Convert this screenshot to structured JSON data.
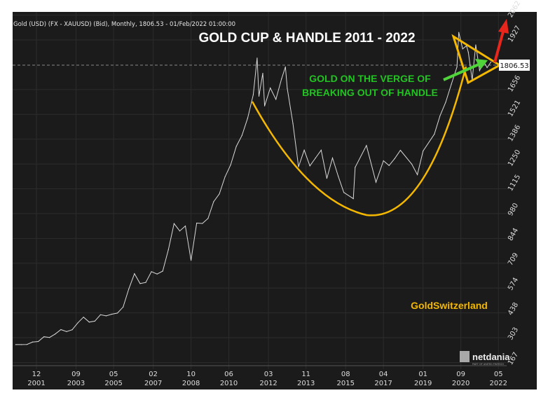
{
  "chart_data": {
    "type": "line",
    "header": "Gold (USD) (FX - XAUUSD) (Bid), Monthly, 1806.53 - 01/Feb/2022 01:00:00",
    "title": "GOLD CUP & HANDLE 2011 - 2022",
    "annotation": [
      "GOLD ON THE VERGE OF",
      "BREAKING OUT OF HANDLE"
    ],
    "brand": "GoldSwitzerland",
    "logo": "netdania",
    "logo_sub": "PART OF UNITED FINTECH",
    "last_value_label": "1806.53",
    "y_ticks": [
      "2062",
      "1927",
      "1656",
      "1521",
      "1386",
      "1250",
      "1115",
      "980",
      "844",
      "709",
      "574",
      "438",
      "303",
      "167"
    ],
    "y_tick_values": [
      2062,
      1927,
      1656,
      1521,
      1386,
      1250,
      1115,
      980,
      844,
      709,
      574,
      438,
      303,
      167
    ],
    "x_ticks": [
      [
        "12",
        "2001"
      ],
      [
        "09",
        "2003"
      ],
      [
        "05",
        "2005"
      ],
      [
        "02",
        "2007"
      ],
      [
        "10",
        "2008"
      ],
      [
        "06",
        "2010"
      ],
      [
        "03",
        "2012"
      ],
      [
        "11",
        "2013"
      ],
      [
        "08",
        "2015"
      ],
      [
        "04",
        "2017"
      ],
      [
        "01",
        "2019"
      ],
      [
        "09",
        "2020"
      ],
      [
        "05",
        "2022"
      ]
    ],
    "x_tick_years": [
      2001.92,
      2003.67,
      2005.33,
      2007.08,
      2008.75,
      2010.42,
      2012.17,
      2013.83,
      2015.58,
      2017.25,
      2019.0,
      2020.67,
      2022.33
    ],
    "colors": {
      "background": "#1b1b1b",
      "line": "#d9d9d9",
      "cup": "#f5b800",
      "title": "#ffffff",
      "annotation": "#22c322",
      "breakout_arrow": "#e8261c",
      "trend_arrow": "#4fd43a",
      "brand": "#f5b800"
    },
    "series": [
      {
        "x": [
          2001.0,
          2001.25,
          2001.5,
          2001.75,
          2002.0,
          2002.25,
          2002.5,
          2002.75,
          2003.0,
          2003.25,
          2003.5,
          2003.75,
          2004.0,
          2004.25,
          2004.5,
          2004.75,
          2005.0,
          2005.25,
          2005.5,
          2005.75,
          2006.0,
          2006.25,
          2006.5,
          2006.75,
          2007.0,
          2007.25,
          2007.5,
          2007.75,
          2008.0,
          2008.25,
          2008.5,
          2008.75,
          2009.0,
          2009.25,
          2009.5,
          2009.75,
          2010.0,
          2010.25,
          2010.5,
          2010.75,
          2011.0,
          2011.25,
          2011.5,
          2011.67,
          2011.75,
          2011.92,
          2012.0,
          2012.25,
          2012.5,
          2012.75,
          2012.92,
          2013.0,
          2013.25,
          2013.5,
          2013.75,
          2014.0,
          2014.25,
          2014.5,
          2014.75,
          2015.0,
          2015.25,
          2015.5,
          2015.92,
          2016.0,
          2016.5,
          2016.92,
          2017.25,
          2017.5,
          2017.75,
          2018.0,
          2018.5,
          2018.75,
          2019.0,
          2019.5,
          2019.75,
          2020.0,
          2020.25,
          2020.5,
          2020.58,
          2020.75,
          2020.92,
          2021.0,
          2021.17,
          2021.33,
          2021.5,
          2021.67,
          2021.83,
          2022.0
        ],
        "y": [
          265,
          265,
          266,
          279,
          282,
          308,
          304,
          323,
          347,
          336,
          346,
          384,
          415,
          388,
          393,
          428,
          422,
          431,
          437,
          470,
          569,
          652,
          598,
          604,
          663,
          650,
          666,
          783,
          925,
          885,
          912,
          725,
          928,
          926,
          953,
          1045,
          1087,
          1180,
          1245,
          1346,
          1406,
          1500,
          1628,
          1828,
          1620,
          1745,
          1567,
          1665,
          1603,
          1715,
          1780,
          1663,
          1472,
          1235,
          1326,
          1240,
          1283,
          1326,
          1172,
          1283,
          1184,
          1095,
          1061,
          1232,
          1351,
          1151,
          1268,
          1242,
          1280,
          1325,
          1250,
          1192,
          1321,
          1413,
          1513,
          1587,
          1686,
          1780,
          1968,
          1878,
          1895,
          1860,
          1708,
          1900,
          1760,
          1812,
          1776,
          1806.53
        ]
      }
    ],
    "grid": true
  }
}
